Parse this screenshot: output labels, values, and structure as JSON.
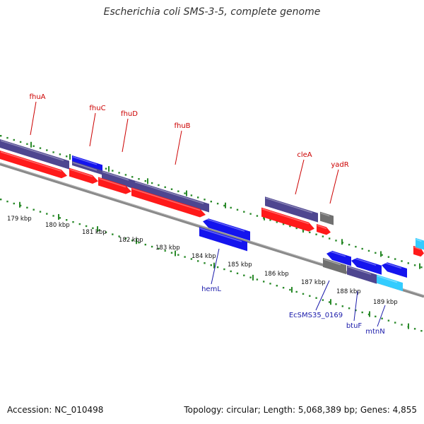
{
  "title": "Escherichia coli SMS-3-5, complete genome",
  "footer": {
    "accession": "Accession: NC_010498",
    "summary": "Topology: circular; Length: 5,068,389 bp; Genes: 4,855"
  },
  "colors": {
    "backbone": "#8a8a8a",
    "tick": "#2a8a2a",
    "cds": "#ff1a1a",
    "gene_dark": "#4e4690",
    "blue": "#1414ee",
    "gray": "#707070",
    "cyan": "#33ccff",
    "label_red": "#cc0000",
    "label_blue": "#1a1aaa"
  },
  "kbp_labels": [
    "179 kbp",
    "180 kbp",
    "181 kbp",
    "182 kbp",
    "183 kbp",
    "184 kbp",
    "185 kbp",
    "186 kbp",
    "187 kbp",
    "188 kbp",
    "189 kbp"
  ],
  "forward_gene_labels": [
    "fhuA",
    "fhuC",
    "fhuD",
    "fhuB",
    "cleA",
    "yadR"
  ],
  "reverse_gene_labels": [
    "hemL",
    "EcSMS35_0169",
    "btuF",
    "mtnN"
  ]
}
